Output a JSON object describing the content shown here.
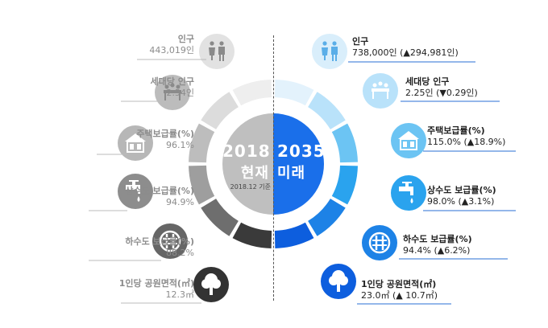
{
  "center": {
    "left_year": "2018",
    "left_label": "현재",
    "left_note": "2018.12 기준",
    "right_year": "2035",
    "right_label": "미래"
  },
  "left_items": [
    {
      "title": "인구",
      "value": "443,019인",
      "icon": "people-icon"
    },
    {
      "title": "세대당 인구",
      "value": "2.54인",
      "icon": "household-icon"
    },
    {
      "title": "주택보급률(%)",
      "value": "96.1%",
      "icon": "house-icon"
    },
    {
      "title": "상수도 보급률(%)",
      "value": "94.9%",
      "icon": "faucet-icon"
    },
    {
      "title": "하수도 보급률(%)",
      "value": "88.2%",
      "icon": "manhole-icon"
    },
    {
      "title": "1인당 공원면적(㎡)",
      "value": "12.3㎡",
      "icon": "tree-icon"
    }
  ],
  "right_items": [
    {
      "title": "인구",
      "value": "738,000인 (▲294,981인)",
      "icon": "people-icon"
    },
    {
      "title": "세대당 인구",
      "value": "2.25인 (▼0.29인)",
      "icon": "household-icon"
    },
    {
      "title": "주택보급률(%)",
      "value": "115.0% (▲18.9%)",
      "icon": "house-icon"
    },
    {
      "title": "상수도 보급률(%)",
      "value": "98.0% (▲3.1%)",
      "icon": "faucet-icon"
    },
    {
      "title": "하수도 보급률(%)",
      "value": "94.4% (▲6.2%)",
      "icon": "manhole-icon"
    },
    {
      "title": "1인당 공원면적(㎡)",
      "value": "23.0㎡ (▲ 10.7㎡)",
      "icon": "tree-icon"
    }
  ],
  "colors": {
    "left_shades": [
      "#eeeeee",
      "#dcdcdc",
      "#bdbdbd",
      "#9e9e9e",
      "#6e6e6e",
      "#3a3a3a"
    ],
    "right_shades": [
      "#e3f2fc",
      "#b9e2fa",
      "#6cc4f3",
      "#2aa3ee",
      "#1d82e6",
      "#0d5ede"
    ],
    "left_center": "#bfbfbf",
    "right_center": "#1a6fea"
  }
}
